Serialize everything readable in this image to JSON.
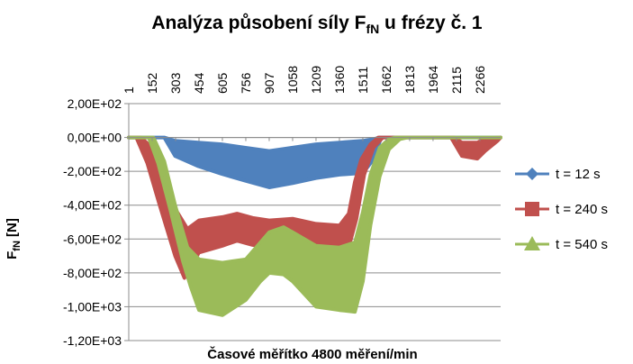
{
  "chart_data": {
    "type": "line",
    "title_main": "Analýza působení síly F",
    "title_sub": "fN",
    "title_tail": " u frézy č. 1",
    "xlabel": "Časové měřítko 4800 měření/min",
    "ylabel_main": "F",
    "ylabel_sub": "fN",
    "ylabel_tail": " [N]",
    "ylim": [
      -1200,
      200
    ],
    "y_ticks": [
      200,
      0,
      -200,
      -400,
      -600,
      -800,
      -1000,
      -1200
    ],
    "y_tick_labels": [
      "2,00E+02",
      "0,00E+00",
      "-2,00E+02",
      "-4,00E+02",
      "-6,00E+02",
      "-8,00E+02",
      "-1,00E+03",
      "-1,20E+03"
    ],
    "x_range": [
      1,
      2400
    ],
    "x_ticks": [
      1,
      152,
      303,
      454,
      605,
      756,
      907,
      1058,
      1209,
      1360,
      1511,
      1662,
      1813,
      1964,
      2115,
      2266
    ],
    "x_tick_labels": [
      "1",
      "152",
      "303",
      "454",
      "605",
      "756",
      "907",
      "1058",
      "1209",
      "1360",
      "1511",
      "1662",
      "1813",
      "1964",
      "2115",
      "2266"
    ],
    "grid": "horizontal",
    "legend_position": "right",
    "series": [
      {
        "name": "t = 12 s",
        "color": "#4F81BD",
        "marker": "diamond",
        "upper": [
          [
            1,
            0
          ],
          [
            230,
            0
          ],
          [
            300,
            -20
          ],
          [
            450,
            -30
          ],
          [
            600,
            -40
          ],
          [
            750,
            -60
          ],
          [
            907,
            -80
          ],
          [
            1058,
            -60
          ],
          [
            1209,
            -40
          ],
          [
            1360,
            -30
          ],
          [
            1511,
            -20
          ],
          [
            1580,
            -10
          ],
          [
            1620,
            0
          ],
          [
            2400,
            0
          ]
        ],
        "lower": [
          [
            1,
            0
          ],
          [
            230,
            0
          ],
          [
            300,
            -110
          ],
          [
            450,
            -170
          ],
          [
            600,
            -215
          ],
          [
            750,
            -255
          ],
          [
            907,
            -295
          ],
          [
            1058,
            -270
          ],
          [
            1209,
            -240
          ],
          [
            1360,
            -220
          ],
          [
            1511,
            -210
          ],
          [
            1580,
            -130
          ],
          [
            1630,
            0
          ],
          [
            2400,
            0
          ]
        ]
      },
      {
        "name": "t = 240 s",
        "color": "#C0504D",
        "marker": "square",
        "upper": [
          [
            1,
            0
          ],
          [
            80,
            0
          ],
          [
            150,
            -60
          ],
          [
            220,
            -220
          ],
          [
            300,
            -420
          ],
          [
            380,
            -540
          ],
          [
            454,
            -490
          ],
          [
            605,
            -470
          ],
          [
            700,
            -450
          ],
          [
            800,
            -475
          ],
          [
            907,
            -490
          ],
          [
            1058,
            -480
          ],
          [
            1209,
            -510
          ],
          [
            1360,
            -520
          ],
          [
            1420,
            -450
          ],
          [
            1460,
            -260
          ],
          [
            1500,
            -130
          ],
          [
            1560,
            -40
          ],
          [
            1610,
            0
          ],
          [
            2100,
            0
          ],
          [
            2150,
            -30
          ],
          [
            2250,
            -30
          ],
          [
            2300,
            -5
          ],
          [
            2400,
            0
          ]
        ],
        "lower": [
          [
            1,
            0
          ],
          [
            50,
            0
          ],
          [
            120,
            -150
          ],
          [
            200,
            -400
          ],
          [
            300,
            -700
          ],
          [
            360,
            -830
          ],
          [
            454,
            -680
          ],
          [
            605,
            -640
          ],
          [
            700,
            -610
          ],
          [
            800,
            -635
          ],
          [
            907,
            -650
          ],
          [
            1058,
            -640
          ],
          [
            1209,
            -690
          ],
          [
            1360,
            -710
          ],
          [
            1420,
            -650
          ],
          [
            1470,
            -480
          ],
          [
            1520,
            -220
          ],
          [
            1580,
            -60
          ],
          [
            1640,
            0
          ],
          [
            2080,
            0
          ],
          [
            2150,
            -110
          ],
          [
            2250,
            -125
          ],
          [
            2300,
            -80
          ],
          [
            2380,
            -20
          ],
          [
            2400,
            0
          ]
        ]
      },
      {
        "name": "t = 540 s",
        "color": "#9BBB59",
        "marker": "triangle",
        "upper": [
          [
            1,
            0
          ],
          [
            160,
            0
          ],
          [
            230,
            -140
          ],
          [
            300,
            -400
          ],
          [
            380,
            -650
          ],
          [
            454,
            -720
          ],
          [
            605,
            -740
          ],
          [
            756,
            -720
          ],
          [
            907,
            -560
          ],
          [
            1000,
            -530
          ],
          [
            1058,
            -560
          ],
          [
            1209,
            -640
          ],
          [
            1360,
            -650
          ],
          [
            1460,
            -620
          ],
          [
            1511,
            -440
          ],
          [
            1560,
            -220
          ],
          [
            1620,
            -60
          ],
          [
            1680,
            -10
          ],
          [
            1720,
            0
          ],
          [
            2400,
            0
          ]
        ],
        "lower": [
          [
            1,
            0
          ],
          [
            130,
            0
          ],
          [
            190,
            -150
          ],
          [
            270,
            -430
          ],
          [
            350,
            -730
          ],
          [
            400,
            -880
          ],
          [
            454,
            -1020
          ],
          [
            605,
            -1050
          ],
          [
            756,
            -960
          ],
          [
            850,
            -850
          ],
          [
            907,
            -800
          ],
          [
            1000,
            -810
          ],
          [
            1058,
            -850
          ],
          [
            1209,
            -1000
          ],
          [
            1360,
            -1020
          ],
          [
            1460,
            -1030
          ],
          [
            1511,
            -850
          ],
          [
            1560,
            -520
          ],
          [
            1620,
            -230
          ],
          [
            1680,
            -70
          ],
          [
            1750,
            -10
          ],
          [
            1800,
            0
          ],
          [
            2400,
            0
          ]
        ]
      }
    ]
  }
}
